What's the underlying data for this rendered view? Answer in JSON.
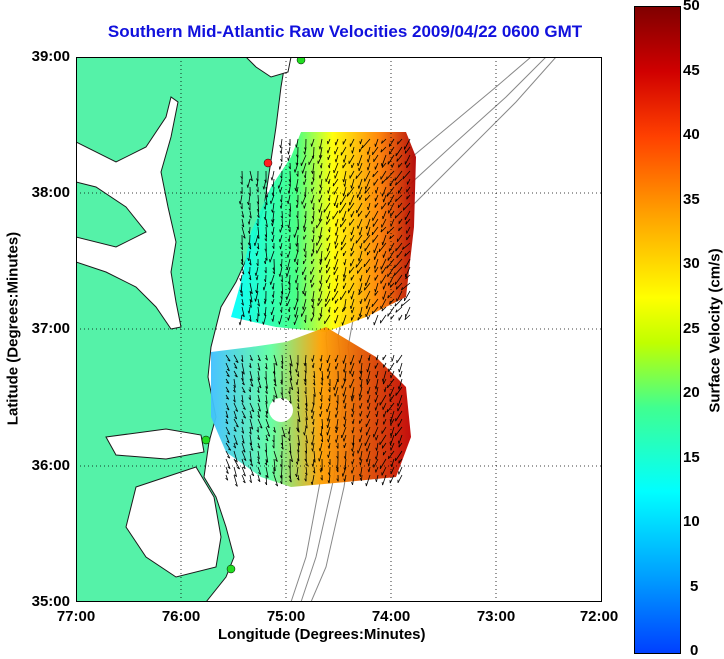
{
  "title": "Southern Mid-Atlantic Raw Velocities 2009/04/22 0600 GMT",
  "axes": {
    "xlabel": "Longitude (Degrees:Minutes)",
    "ylabel": "Latitude (Degrees:Minutes)",
    "xticks": [
      "77:00",
      "76:00",
      "75:00",
      "74:00",
      "73:00",
      "72:00"
    ],
    "yticks": [
      "39:00",
      "38:00",
      "37:00",
      "36:00",
      "35:00"
    ],
    "grid": "dotted"
  },
  "colorbar": {
    "label": "Surface Velocity (cm/s)",
    "ticks": [
      "50",
      "45",
      "40",
      "35",
      "30",
      "25",
      "20",
      "15",
      "10",
      "5",
      "0"
    ],
    "min": 0,
    "max": 50,
    "colormap": "jet"
  },
  "colors": {
    "land": "#55f2a8",
    "title": "#1111dd",
    "coast": "#1a1a1a",
    "bathymetry": "#888888",
    "station_red": "#ff2020",
    "station_green": "#22dd22"
  },
  "map_extent": {
    "lon": [
      -77,
      -72
    ],
    "lat": [
      35,
      39
    ]
  },
  "stations": [
    {
      "color": "red",
      "lon": -75.15,
      "lat": 38.25
    },
    {
      "color": "green",
      "lon": -75.3,
      "lat": 38.98
    },
    {
      "color": "green",
      "lon": -75.7,
      "lat": 36.18
    },
    {
      "color": "green",
      "lon": -75.46,
      "lat": 35.25
    }
  ]
}
